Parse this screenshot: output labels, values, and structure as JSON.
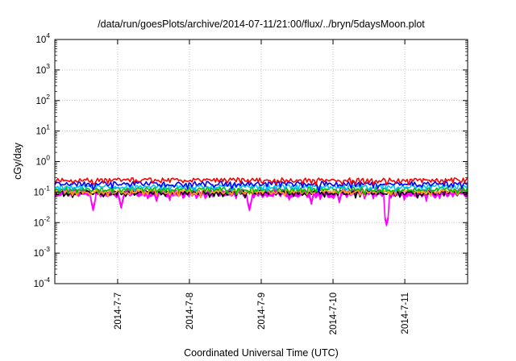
{
  "chart_data": {
    "type": "line",
    "title": "/data/run/goesPlots/archive/2014-07-11/21:00/flux/../bryn/5daysMoon.plot",
    "xlabel": "Coordinated Universal Time (UTC)",
    "ylabel": "cGy/day",
    "y_scale": "log",
    "ylim": [
      0.0001,
      10000
    ],
    "y_ticks": [
      {
        "base": "10",
        "exp": "4"
      },
      {
        "base": "10",
        "exp": "3"
      },
      {
        "base": "10",
        "exp": "2"
      },
      {
        "base": "10",
        "exp": "1"
      },
      {
        "base": "10",
        "exp": "0"
      },
      {
        "base": "10",
        "exp": "-1"
      },
      {
        "base": "10",
        "exp": "-2"
      },
      {
        "base": "10",
        "exp": "-3"
      },
      {
        "base": "10",
        "exp": "-4"
      }
    ],
    "x_range_days": [
      "2014-07-06 03:00",
      "2014-07-11 21:00"
    ],
    "x_ticks": [
      "2014-7-7",
      "2014-7-8",
      "2014-7-9",
      "2014-7-10",
      "2014-7-11"
    ],
    "grid": true,
    "series": [
      {
        "color": "#ff0000",
        "level": 0.26,
        "dips": [
          {
            "day": "2014-07-06 16:00",
            "value": 0.18
          },
          {
            "day": "2014-07-10 18:00",
            "value": 0.17
          }
        ]
      },
      {
        "color": "#0000ff",
        "level": 0.2,
        "dips": [
          {
            "day": "2014-07-06 16:00",
            "value": 0.12
          },
          {
            "day": "2014-07-09 19:00",
            "value": 0.1
          }
        ]
      },
      {
        "color": "#00c0ff",
        "level": 0.16,
        "dips": [
          {
            "day": "2014-07-08 02:00",
            "value": 0.11
          }
        ]
      },
      {
        "color": "#00c000",
        "level": 0.13,
        "dips": [
          {
            "day": "2014-07-08 20:00",
            "value": 0.09
          }
        ]
      },
      {
        "color": "#ffa500",
        "level": 0.11,
        "dips": []
      },
      {
        "color": "#000000",
        "level": 0.1,
        "dips": []
      },
      {
        "color": "#ff00ff",
        "level": 0.085,
        "dips": [
          {
            "day": "2014-07-06 16:00",
            "value": 0.025
          },
          {
            "day": "2014-07-07 01:00",
            "value": 0.03
          },
          {
            "day": "2014-07-07 13:00",
            "value": 0.05
          },
          {
            "day": "2014-07-08 20:00",
            "value": 0.025
          },
          {
            "day": "2014-07-09 17:00",
            "value": 0.04
          },
          {
            "day": "2014-07-10 02:00",
            "value": 0.045
          },
          {
            "day": "2014-07-10 18:00",
            "value": 0.008
          },
          {
            "day": "2014-07-11 07:00",
            "value": 0.05
          }
        ]
      }
    ]
  }
}
